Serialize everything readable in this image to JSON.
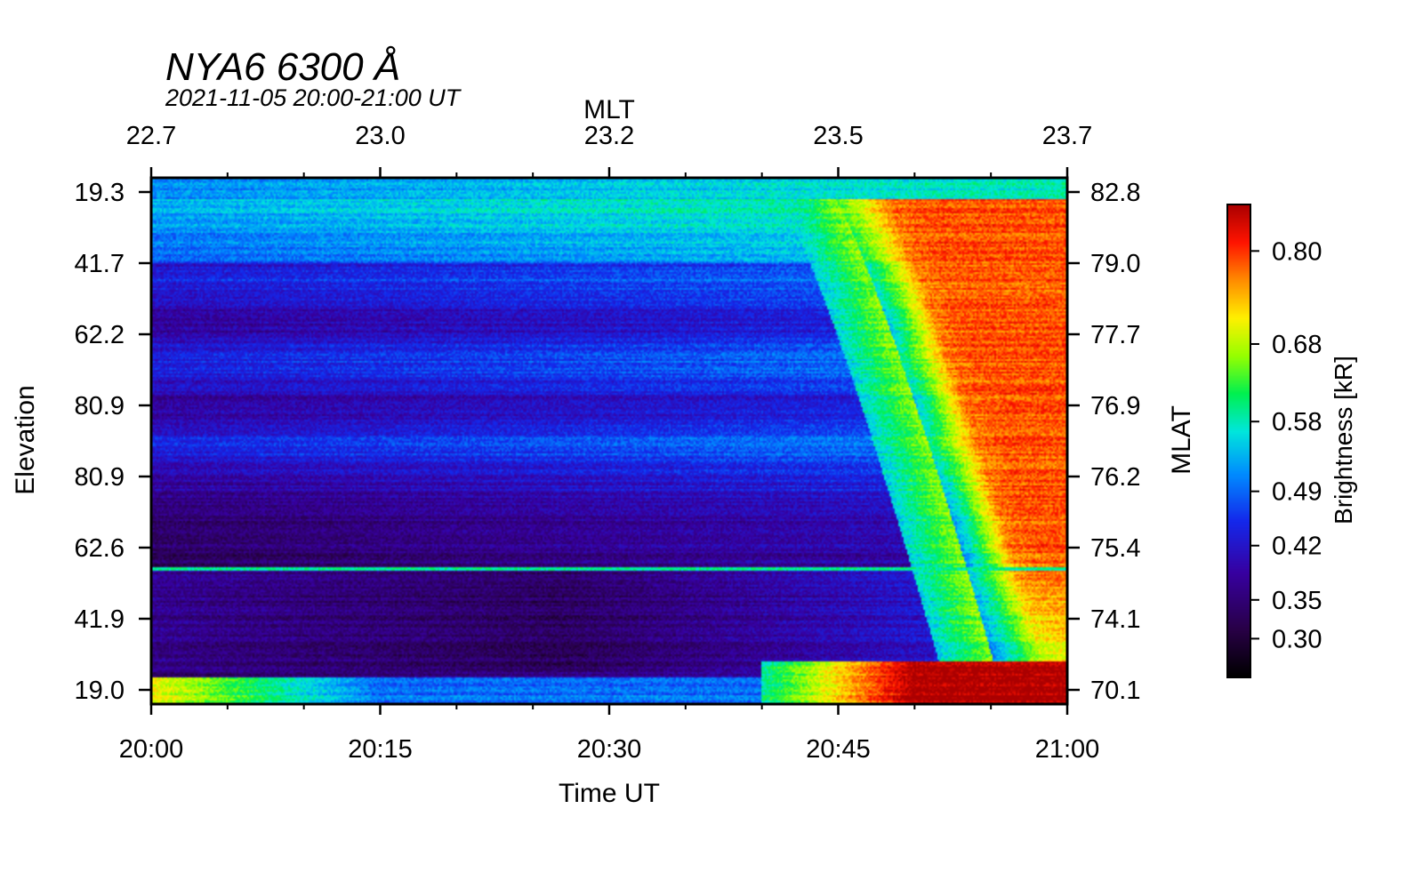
{
  "chart_data": {
    "type": "heatmap",
    "title": "NYA6 6300 Å",
    "subtitle": "2021-11-05 20:00-21:00 UT",
    "xlabel": "Time UT",
    "x_top_label": "MLT",
    "ylabel_left": "Elevation",
    "ylabel_right": "MLAT",
    "colorbar_label": "Brightness [kR]",
    "x_ticks": [
      "20:00",
      "20:15",
      "20:30",
      "20:45",
      "21:00"
    ],
    "x_range_minutes": [
      0,
      60
    ],
    "x_ticks_minutes": [
      0,
      15,
      30,
      45,
      60
    ],
    "mlt_ticks": [
      "22.7",
      "23.0",
      "23.2",
      "23.5",
      "23.7"
    ],
    "elevation_ticks": [
      "19.3",
      "41.7",
      "62.2",
      "80.9",
      "80.9",
      "62.6",
      "41.9",
      "19.0"
    ],
    "mlat_ticks": [
      "82.8",
      "79.0",
      "77.7",
      "76.9",
      "76.2",
      "75.4",
      "74.1",
      "70.1"
    ],
    "colorbar_ticks": [
      "0.80",
      "0.68",
      "0.58",
      "0.49",
      "0.42",
      "0.35",
      "0.30"
    ],
    "colorbar_tick_values": [
      0.8,
      0.68,
      0.58,
      0.49,
      0.42,
      0.35,
      0.3
    ],
    "value_range_kR": [
      0.25,
      0.86
    ],
    "colormap": "rainbow",
    "features": {
      "auroral_arc_onset_minute": 44,
      "arc_equatorward_edge_minute_at_bottom": 56,
      "low_elevation_enhancement_from_minute": 40
    }
  }
}
